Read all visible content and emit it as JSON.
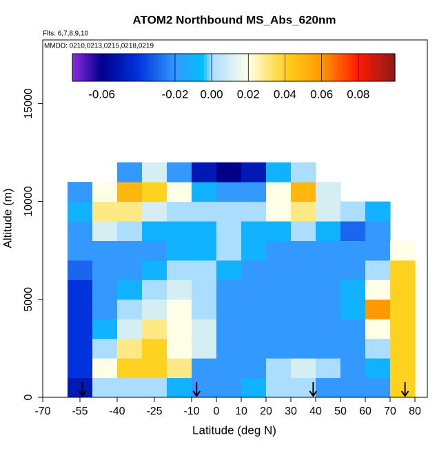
{
  "chart_data": {
    "type": "heatmap",
    "title": "ATOM2 Northbound MS_Abs_620nm",
    "subtitle": "Flts: 6,7,8,9,10",
    "annotation": "MMDD: 0210,0213,0215,0218,0219",
    "x_label": "Latitude (deg N)",
    "y_label": "Altitude (m)",
    "xlim": [
      -70,
      85
    ],
    "xticks": [
      -70,
      -55,
      -40,
      -25,
      -10,
      0,
      10,
      20,
      30,
      40,
      50,
      60,
      70,
      80
    ],
    "ylim": [
      0,
      18250
    ],
    "yticks": [
      0,
      5000,
      10000,
      15000
    ],
    "x": [
      -55,
      -45,
      -35,
      -25,
      -15,
      -5,
      5,
      15,
      25,
      35,
      45,
      55,
      65,
      75
    ],
    "y": [
      500,
      1500,
      2500,
      3500,
      4500,
      5500,
      6500,
      7500,
      8500,
      9500,
      10500,
      11500
    ],
    "z": [
      [
        -0.05,
        0.0,
        0.0,
        0.0,
        -0.01,
        -0.02,
        -0.02,
        -0.01,
        0.0,
        0.0,
        -0.02,
        -0.02,
        -0.02,
        0.04
      ],
      [
        -0.04,
        0.02,
        0.04,
        0.04,
        0.03,
        -0.02,
        -0.02,
        -0.02,
        0.0,
        0.01,
        0.0,
        -0.02,
        -0.01,
        0.04
      ],
      [
        -0.04,
        0.0,
        0.03,
        0.04,
        0.02,
        0.01,
        -0.02,
        -0.02,
        -0.02,
        -0.02,
        -0.02,
        -0.02,
        0.0,
        0.04
      ],
      [
        -0.04,
        -0.01,
        0.01,
        0.03,
        0.02,
        0.01,
        -0.02,
        -0.02,
        -0.02,
        -0.02,
        -0.02,
        -0.02,
        0.02,
        0.04
      ],
      [
        -0.04,
        -0.02,
        0.0,
        0.01,
        0.02,
        0.0,
        -0.02,
        -0.02,
        -0.02,
        -0.02,
        -0.02,
        -0.01,
        0.06,
        0.04
      ],
      [
        -0.04,
        -0.02,
        -0.01,
        0.0,
        0.01,
        0.0,
        -0.02,
        -0.02,
        -0.02,
        -0.02,
        -0.02,
        -0.01,
        0.02,
        0.04
      ],
      [
        -0.03,
        -0.02,
        -0.02,
        -0.01,
        0.0,
        0.0,
        -0.01,
        -0.02,
        -0.02,
        -0.02,
        -0.02,
        -0.02,
        0.0,
        0.04
      ],
      [
        -0.02,
        -0.02,
        -0.02,
        -0.02,
        -0.01,
        -0.01,
        0.0,
        -0.01,
        -0.02,
        -0.02,
        -0.02,
        -0.02,
        -0.02,
        0.02
      ],
      [
        -0.02,
        0.01,
        0.0,
        -0.01,
        -0.01,
        -0.01,
        0.0,
        -0.01,
        -0.01,
        0.0,
        -0.01,
        -0.03,
        -0.02,
        null
      ],
      [
        -0.01,
        0.03,
        0.03,
        0.01,
        0.0,
        0.0,
        0.0,
        0.0,
        0.02,
        0.03,
        0.01,
        0.0,
        -0.01,
        null
      ],
      [
        -0.02,
        0.02,
        0.05,
        0.04,
        0.02,
        -0.01,
        -0.02,
        -0.02,
        0.02,
        0.05,
        0.01,
        null,
        null,
        null
      ],
      [
        null,
        null,
        -0.02,
        0.01,
        -0.02,
        -0.05,
        -0.06,
        -0.05,
        -0.01,
        0.0,
        null,
        null,
        null,
        null
      ]
    ],
    "arrows_x": [
      -54,
      -8,
      39,
      76
    ],
    "colorbar_lim": [
      -0.076,
      0.1
    ],
    "colorbar_ticks": [
      -0.06,
      -0.02,
      {
        "value": 0,
        "label": "0.00"
      },
      0.02,
      0.04,
      0.06,
      0.08
    ],
    "colorscale": [
      [
        -0.076,
        "#8a2be2"
      ],
      [
        -0.06,
        "#00008b"
      ],
      [
        -0.04,
        "#0033dd"
      ],
      [
        -0.02,
        "#3399ff"
      ],
      [
        -0.005,
        "#00bfff"
      ],
      [
        0.0,
        "#aaddff"
      ],
      [
        0.02,
        "#ffffe8"
      ],
      [
        0.04,
        "#ffd21f"
      ],
      [
        0.06,
        "#ff9900"
      ],
      [
        0.08,
        "#ff1a00"
      ],
      [
        0.1,
        "#8b1a1a"
      ]
    ]
  }
}
